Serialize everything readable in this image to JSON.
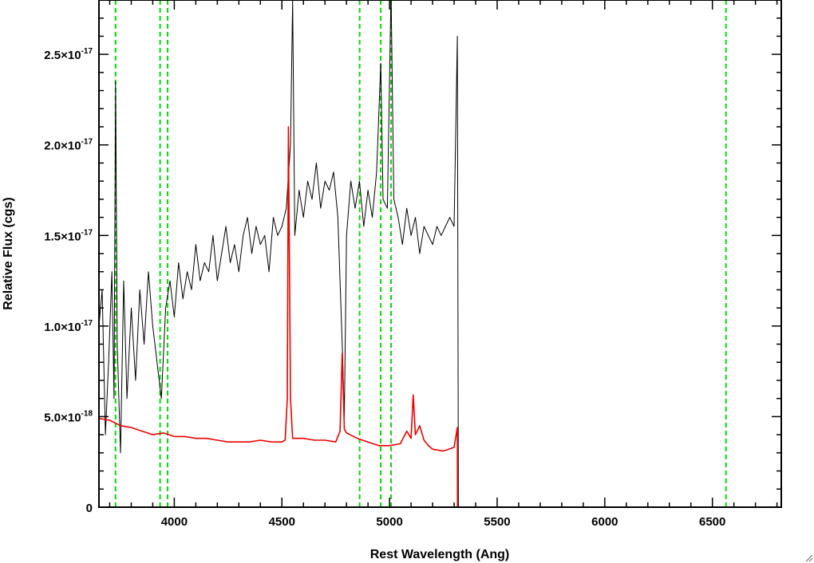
{
  "chart_data": {
    "type": "line",
    "xlabel": "Rest Wavelength (Ang)",
    "ylabel": "Relative Flux (cgs)",
    "xlim": [
      3650,
      6820
    ],
    "ylim": [
      0,
      2.8e-17
    ],
    "x_ticks": [
      {
        "value": 4000,
        "label": "4000"
      },
      {
        "value": 4500,
        "label": "4500"
      },
      {
        "value": 5000,
        "label": "5000"
      },
      {
        "value": 5500,
        "label": "5500"
      },
      {
        "value": 6000,
        "label": "6000"
      },
      {
        "value": 6500,
        "label": "6500"
      }
    ],
    "y_ticks": [
      {
        "value": 0,
        "mantissa": "0",
        "exponent": ""
      },
      {
        "value": 5e-18,
        "mantissa": "5.0×10",
        "exponent": "-18"
      },
      {
        "value": 1e-17,
        "mantissa": "1.0×10",
        "exponent": "-17"
      },
      {
        "value": 1.5e-17,
        "mantissa": "1.5×10",
        "exponent": "-17"
      },
      {
        "value": 2e-17,
        "mantissa": "2.0×10",
        "exponent": "-17"
      },
      {
        "value": 2.5e-17,
        "mantissa": "2.5×10",
        "exponent": "-17"
      }
    ],
    "x_minor_step": 100,
    "y_minor_step": 1e-18,
    "reference_lines": {
      "color": "#00dd00",
      "style": "dashed",
      "x": [
        3727,
        3934,
        3969,
        4861,
        4959,
        5007,
        6563
      ]
    },
    "series": [
      {
        "color": "#000000",
        "x": [
          3650,
          3665,
          3680,
          3695,
          3710,
          3720,
          3727,
          3735,
          3750,
          3765,
          3780,
          3800,
          3820,
          3840,
          3860,
          3880,
          3900,
          3920,
          3940,
          3960,
          3980,
          4000,
          4020,
          4040,
          4060,
          4080,
          4100,
          4120,
          4140,
          4160,
          4180,
          4200,
          4220,
          4240,
          4260,
          4280,
          4300,
          4320,
          4340,
          4360,
          4380,
          4400,
          4420,
          4440,
          4460,
          4480,
          4500,
          4520,
          4540,
          4550,
          4560,
          4580,
          4600,
          4620,
          4640,
          4660,
          4680,
          4700,
          4720,
          4740,
          4760,
          4780,
          4790,
          4800,
          4820,
          4840,
          4860,
          4880,
          4900,
          4920,
          4940,
          4959,
          4970,
          4990,
          5007,
          5020,
          5040,
          5060,
          5080,
          5100,
          5120,
          5140,
          5160,
          5180,
          5200,
          5220,
          5240,
          5260,
          5280,
          5300,
          5315,
          5320,
          6820
        ],
        "y": [
          1e-17,
          1.2e-17,
          4e-18,
          8e-18,
          1.3e-17,
          6e-18,
          2.35e-17,
          9e-18,
          3e-18,
          1.25e-17,
          6e-18,
          1.1e-17,
          7e-18,
          1.2e-17,
          9e-18,
          1.3e-17,
          1e-17,
          8e-18,
          6e-18,
          1.1e-17,
          1.25e-17,
          1.05e-17,
          1.35e-17,
          1.15e-17,
          1.3e-17,
          1.2e-17,
          1.45e-17,
          1.25e-17,
          1.35e-17,
          1.3e-17,
          1.5e-17,
          1.25e-17,
          1.4e-17,
          1.55e-17,
          1.35e-17,
          1.45e-17,
          1.3e-17,
          1.5e-17,
          1.6e-17,
          1.4e-17,
          1.55e-17,
          1.45e-17,
          1.5e-17,
          1.3e-17,
          1.6e-17,
          1.5e-17,
          1.55e-17,
          1.65e-17,
          2e-17,
          2.8e-17,
          1.5e-17,
          1.75e-17,
          1.6e-17,
          1.8e-17,
          1.7e-17,
          1.9e-17,
          1.65e-17,
          1.8e-17,
          1.75e-17,
          1.85e-17,
          1.6e-17,
          9e-18,
          5e-18,
          1.5e-17,
          1.8e-17,
          1.65e-17,
          1.8e-17,
          1.55e-17,
          1.75e-17,
          1.6e-17,
          1.85e-17,
          2.45e-17,
          1.7e-17,
          1.65e-17,
          2.85e-17,
          1.7e-17,
          1.6e-17,
          1.45e-17,
          1.65e-17,
          1.5e-17,
          1.6e-17,
          1.4e-17,
          1.55e-17,
          1.5e-17,
          1.45e-17,
          1.55e-17,
          1.5e-17,
          1.55e-17,
          1.6e-17,
          1.55e-17,
          2.6e-17,
          0,
          0
        ]
      },
      {
        "color": "#ee0000",
        "x": [
          3650,
          3700,
          3750,
          3800,
          3850,
          3900,
          3950,
          4000,
          4050,
          4100,
          4150,
          4200,
          4250,
          4300,
          4350,
          4400,
          4450,
          4500,
          4515,
          4525,
          4530,
          4540,
          4550,
          4600,
          4650,
          4700,
          4750,
          4770,
          4780,
          4790,
          4800,
          4850,
          4900,
          4950,
          5000,
          5050,
          5080,
          5100,
          5110,
          5120,
          5140,
          5160,
          5180,
          5200,
          5250,
          5300,
          5315,
          5316,
          6820
        ],
        "y": [
          4.9e-18,
          4.8e-18,
          4.5e-18,
          4.4e-18,
          4.2e-18,
          4e-18,
          4.1e-18,
          3.9e-18,
          3.9e-18,
          3.8e-18,
          3.8e-18,
          3.7e-18,
          3.6e-18,
          3.6e-18,
          3.6e-18,
          3.7e-18,
          3.6e-18,
          3.6e-18,
          3.7e-18,
          6e-18,
          2.1e-17,
          6e-18,
          3.8e-18,
          3.8e-18,
          3.7e-18,
          3.7e-18,
          3.6e-18,
          4.2e-18,
          8.5e-18,
          4.3e-18,
          4.1e-18,
          3.8e-18,
          3.6e-18,
          3.4e-18,
          3.4e-18,
          3.5e-18,
          4.2e-18,
          3.8e-18,
          6.2e-18,
          4e-18,
          4.5e-18,
          3.7e-18,
          3.4e-18,
          3.2e-18,
          3.1e-18,
          3.3e-18,
          4.4e-18,
          0,
          0
        ]
      }
    ]
  }
}
